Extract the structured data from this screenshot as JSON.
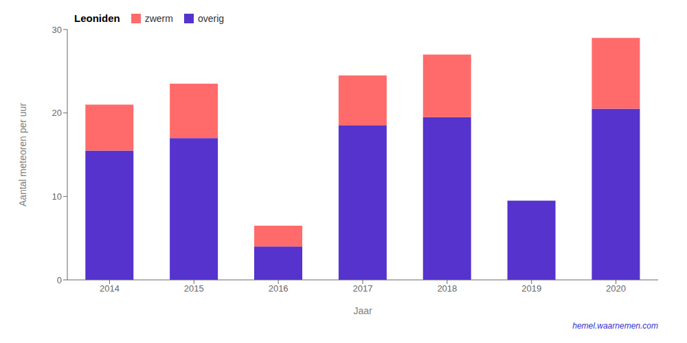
{
  "chart_data": {
    "type": "bar",
    "title": "Leoniden",
    "xlabel": "Jaar",
    "ylabel": "Aantal meteoren per uur",
    "categories": [
      "2014",
      "2015",
      "2016",
      "2017",
      "2018",
      "2019",
      "2020"
    ],
    "series": [
      {
        "name": "overig",
        "color": "#5533CC",
        "values": [
          15.5,
          17.0,
          4.0,
          18.5,
          19.5,
          9.5,
          20.5
        ]
      },
      {
        "name": "zwerm",
        "color": "#FF6B6B",
        "values": [
          5.5,
          6.5,
          2.5,
          6.0,
          7.5,
          0.0,
          8.5
        ]
      }
    ],
    "stacked": true,
    "ylim": [
      0,
      30
    ],
    "yticks": [
      0,
      10,
      20,
      30
    ],
    "grid": false,
    "legend": "upper left",
    "annotations": [
      {
        "text": "hemel.waarnemen.com",
        "color": "#3333CC"
      }
    ]
  }
}
